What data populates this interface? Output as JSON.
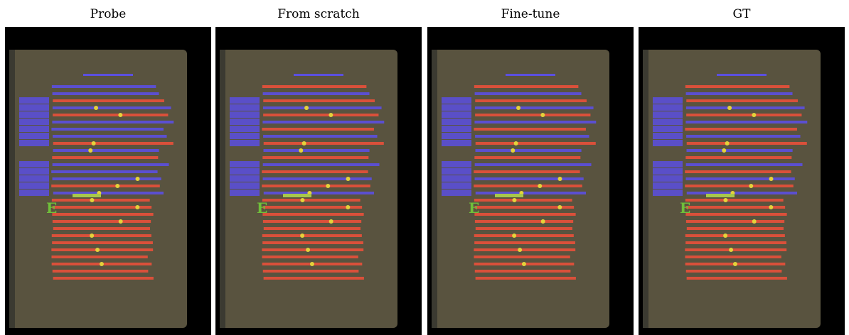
{
  "panels": [
    {
      "title": "Probe"
    },
    {
      "title": "From scratch"
    },
    {
      "title": "Fine-tune"
    },
    {
      "title": "GT"
    }
  ]
}
